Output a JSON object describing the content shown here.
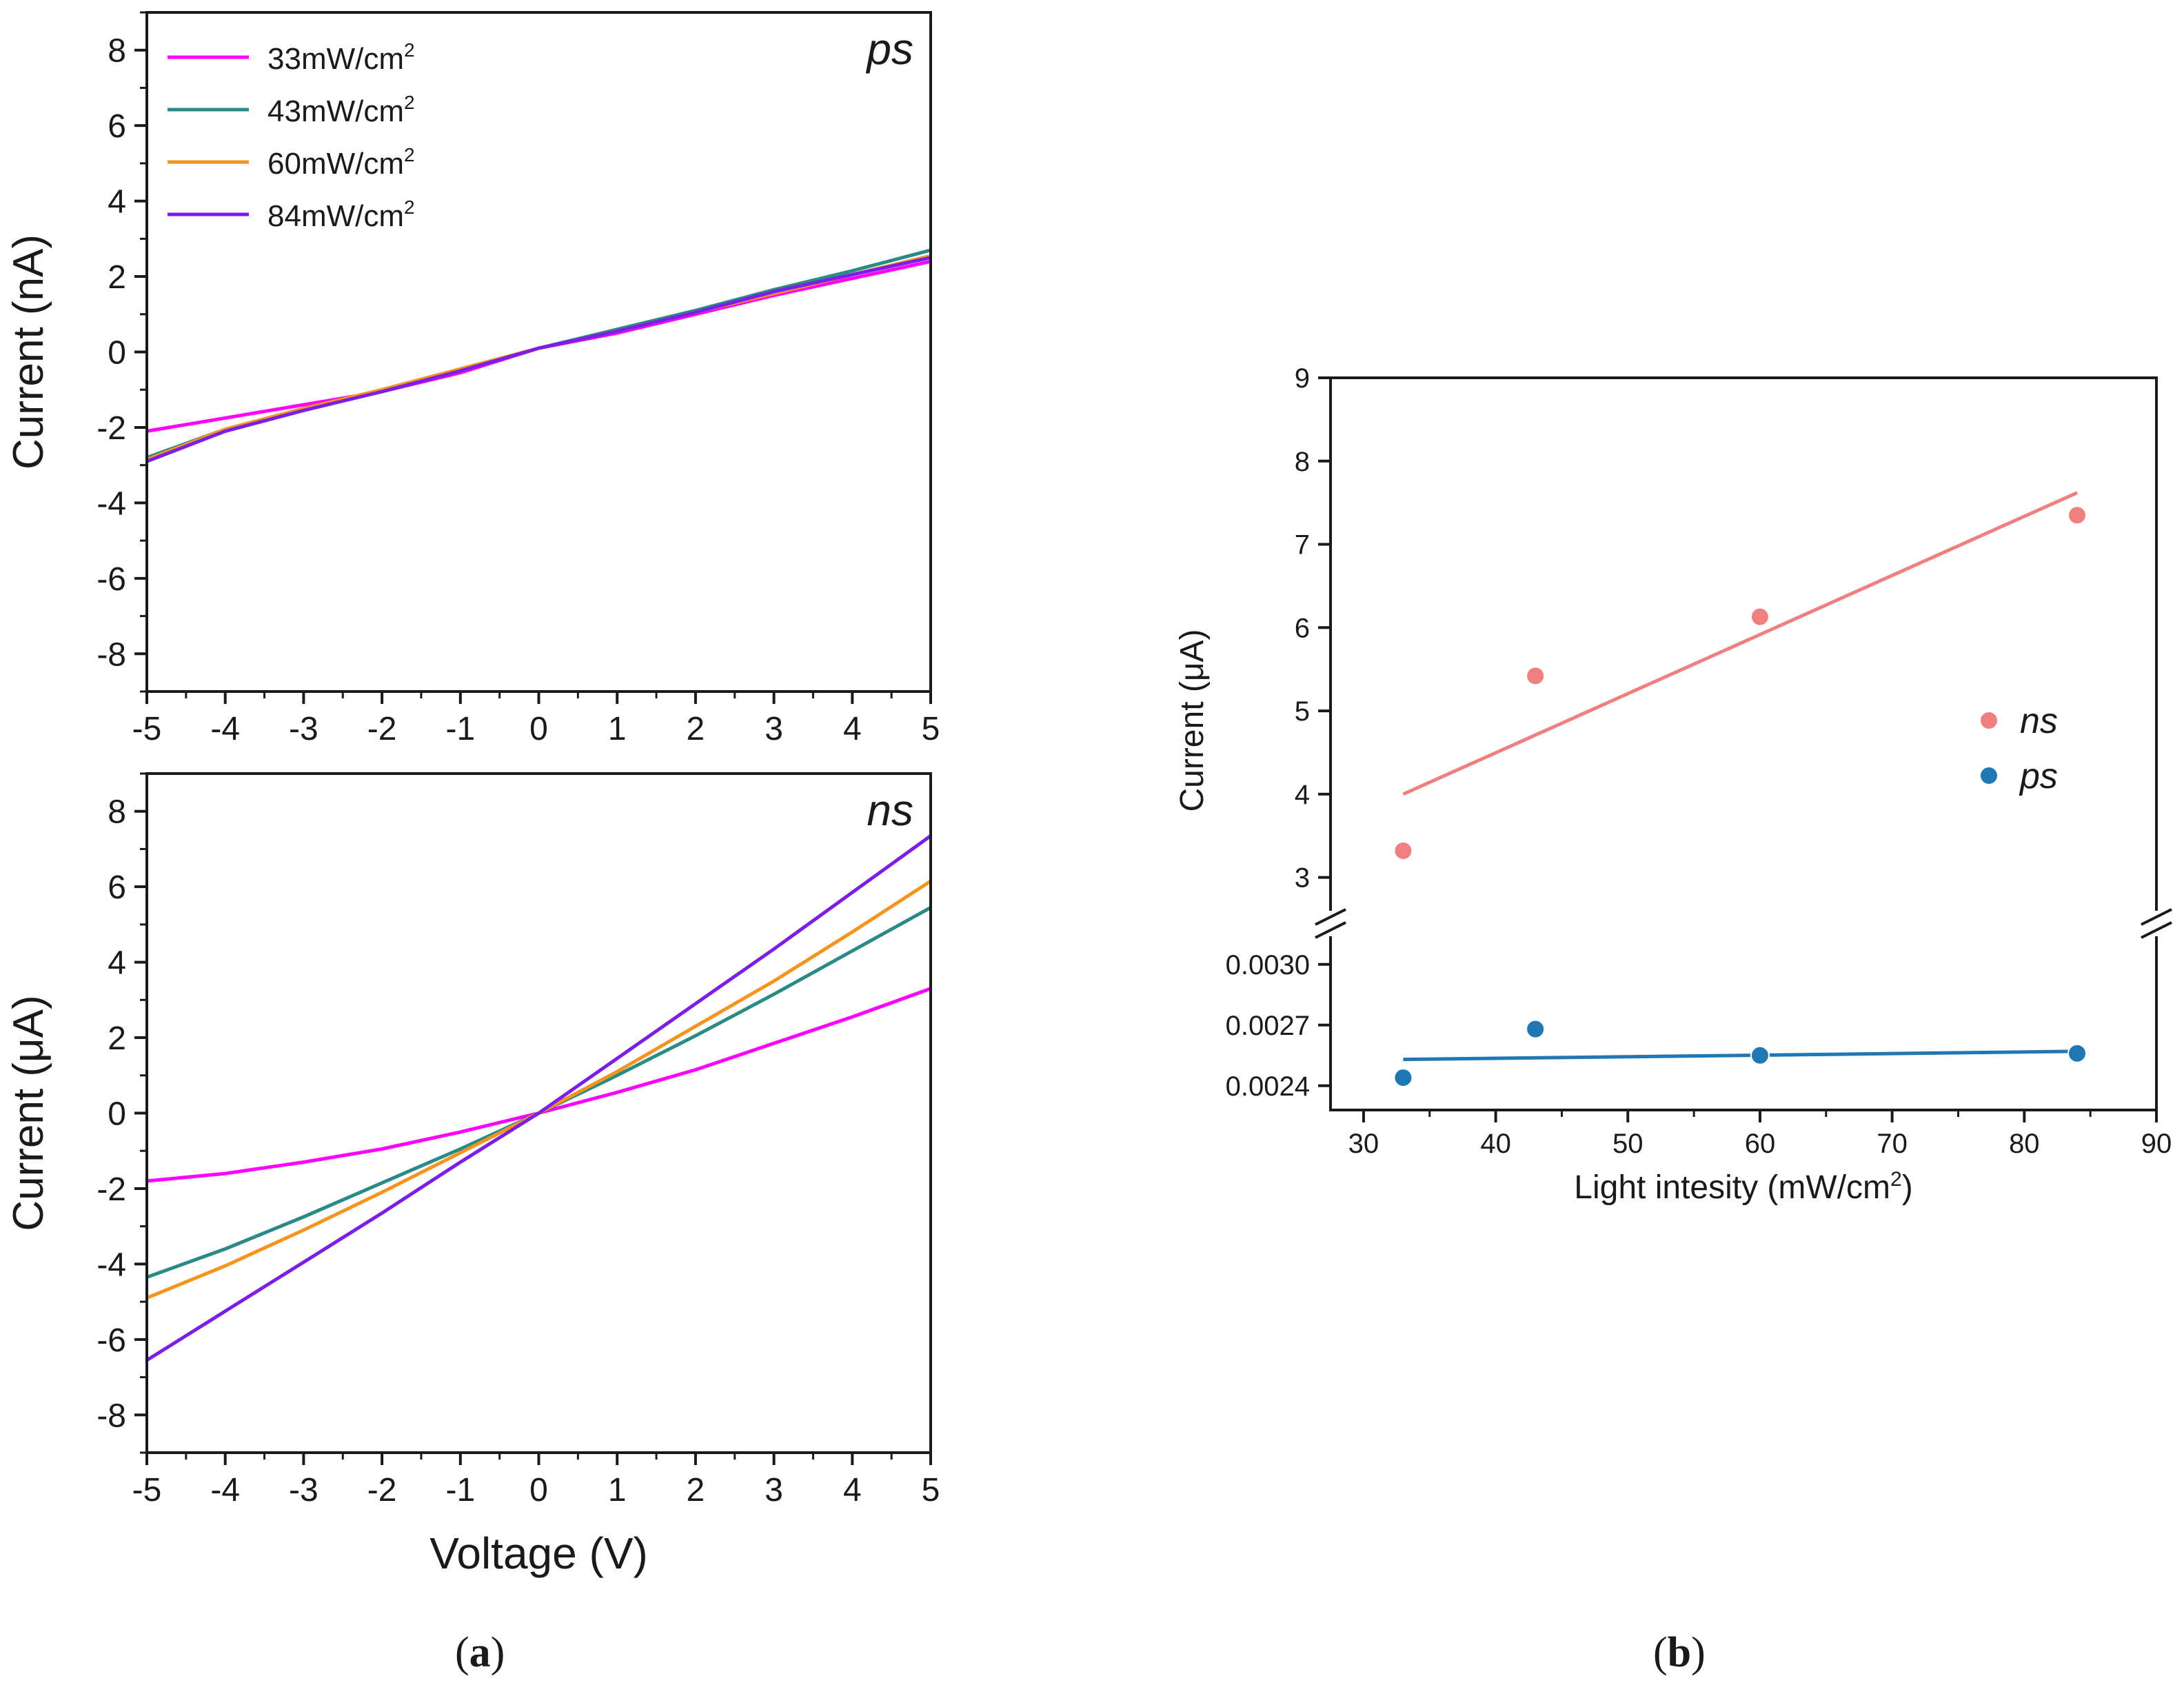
{
  "chart_data": [
    {
      "id": "a-ps",
      "type": "line",
      "panel_label": "ps",
      "ylabel": "Current (nA)",
      "xlabel": "",
      "xlim": [
        -5,
        5
      ],
      "ylim": [
        -9,
        9
      ],
      "x_ticks": [
        -5,
        -4,
        -3,
        -2,
        -1,
        0,
        1,
        2,
        3,
        4,
        5
      ],
      "x_tick_labels": [
        "-5",
        "-4",
        "-3",
        "-2",
        "-1",
        "0",
        "1",
        "2",
        "3",
        "4",
        "5"
      ],
      "y_ticks": [
        -8,
        -6,
        -4,
        -2,
        0,
        2,
        4,
        6,
        8
      ],
      "y_tick_labels": [
        "-8",
        "-6",
        "-4",
        "-2",
        "0",
        "2",
        "4",
        "6",
        "8"
      ],
      "legend": {
        "position": "top-left",
        "entries": [
          {
            "label": "33mW/cm",
            "sup": "2",
            "color": "#ff00ff"
          },
          {
            "label": "43mW/cm",
            "sup": "2",
            "color": "#2a8a85"
          },
          {
            "label": "60mW/cm",
            "sup": "2",
            "color": "#f7941d"
          },
          {
            "label": "84mW/cm",
            "sup": "2",
            "color": "#7b1fe8"
          }
        ]
      },
      "series": [
        {
          "name": "33mW/cm2",
          "color": "#ff00ff",
          "x": [
            -5,
            -4,
            -3,
            -2,
            -1,
            0,
            1,
            2,
            3,
            4,
            5
          ],
          "values": [
            -2.1,
            -1.75,
            -1.4,
            -1.05,
            -0.55,
            0.1,
            0.5,
            1.0,
            1.5,
            1.95,
            2.4
          ]
        },
        {
          "name": "43mW/cm2",
          "color": "#2a8a85",
          "x": [
            -5,
            -4,
            -3,
            -2,
            -1,
            0,
            1,
            2,
            3,
            4,
            5
          ],
          "values": [
            -2.8,
            -2.05,
            -1.5,
            -1.05,
            -0.5,
            0.1,
            0.6,
            1.1,
            1.65,
            2.15,
            2.7
          ]
        },
        {
          "name": "60mW/cm2",
          "color": "#f7941d",
          "x": [
            -5,
            -4,
            -3,
            -2,
            -1,
            0,
            1,
            2,
            3,
            4,
            5
          ],
          "values": [
            -2.85,
            -2.05,
            -1.5,
            -1.0,
            -0.45,
            0.1,
            0.55,
            1.05,
            1.55,
            2.05,
            2.55
          ]
        },
        {
          "name": "84mW/cm2",
          "color": "#7b1fe8",
          "x": [
            -5,
            -4,
            -3,
            -2,
            -1,
            0,
            1,
            2,
            3,
            4,
            5
          ],
          "values": [
            -2.9,
            -2.1,
            -1.55,
            -1.05,
            -0.5,
            0.1,
            0.55,
            1.05,
            1.6,
            2.05,
            2.5
          ]
        }
      ]
    },
    {
      "id": "a-ns",
      "type": "line",
      "panel_label": "ns",
      "ylabel": "Current (μA)",
      "xlabel": "Voltage (V)",
      "xlim": [
        -5,
        5
      ],
      "ylim": [
        -9,
        9
      ],
      "x_ticks": [
        -5,
        -4,
        -3,
        -2,
        -1,
        0,
        1,
        2,
        3,
        4,
        5
      ],
      "x_tick_labels": [
        "-5",
        "-4",
        "-3",
        "-2",
        "-1",
        "0",
        "1",
        "2",
        "3",
        "4",
        "5"
      ],
      "y_ticks": [
        -8,
        -6,
        -4,
        -2,
        0,
        2,
        4,
        6,
        8
      ],
      "y_tick_labels": [
        "-8",
        "-6",
        "-4",
        "-2",
        "0",
        "2",
        "4",
        "6",
        "8"
      ],
      "series": [
        {
          "name": "33mW/cm2",
          "color": "#ff00ff",
          "x": [
            -5,
            -4,
            -3,
            -2,
            -1,
            0,
            1,
            2,
            3,
            4,
            5
          ],
          "values": [
            -1.8,
            -1.6,
            -1.3,
            -0.95,
            -0.5,
            0,
            0.55,
            1.15,
            1.85,
            2.55,
            3.3
          ]
        },
        {
          "name": "43mW/cm2",
          "color": "#2a8a85",
          "x": [
            -5,
            -4,
            -3,
            -2,
            -1,
            0,
            1,
            2,
            3,
            4,
            5
          ],
          "values": [
            -4.35,
            -3.6,
            -2.75,
            -1.85,
            -0.95,
            0,
            1.0,
            2.05,
            3.15,
            4.3,
            5.45
          ]
        },
        {
          "name": "60mW/cm2",
          "color": "#f7941d",
          "x": [
            -5,
            -4,
            -3,
            -2,
            -1,
            0,
            1,
            2,
            3,
            4,
            5
          ],
          "values": [
            -4.9,
            -4.05,
            -3.1,
            -2.1,
            -1.05,
            0,
            1.1,
            2.3,
            3.5,
            4.8,
            6.15
          ]
        },
        {
          "name": "84mW/cm2",
          "color": "#7b1fe8",
          "x": [
            -5,
            -4,
            -3,
            -2,
            -1,
            0,
            1,
            2,
            3,
            4,
            5
          ],
          "values": [
            -6.55,
            -5.25,
            -3.95,
            -2.65,
            -1.3,
            0,
            1.45,
            2.9,
            4.35,
            5.85,
            7.35
          ]
        }
      ]
    },
    {
      "id": "b",
      "type": "scatter",
      "ylabel": "Current (μA)",
      "xlabel": "Light intesity (mW/cm",
      "xlabel_sup": "2",
      "xlabel_end": ")",
      "xlim": [
        27.5,
        90
      ],
      "x_ticks": [
        30,
        40,
        50,
        60,
        70,
        80,
        90
      ],
      "x_tick_labels": [
        "30",
        "40",
        "50",
        "60",
        "70",
        "80",
        "90"
      ],
      "upper_ylim": [
        2.5,
        9
      ],
      "upper_y_ticks": [
        3,
        4,
        5,
        6,
        7,
        8,
        9
      ],
      "upper_y_tick_labels": [
        "3",
        "4",
        "5",
        "6",
        "7",
        "8",
        "9"
      ],
      "lower_ylim": [
        0.00228,
        0.00318
      ],
      "lower_y_ticks": [
        0.0024,
        0.0027,
        0.003
      ],
      "lower_y_tick_labels": [
        "0.0024",
        "0.0027",
        "0.0030"
      ],
      "legend": {
        "position": "right",
        "entries": [
          {
            "label": "ns",
            "color": "#f08080"
          },
          {
            "label": "ps",
            "color": "#1f77b4"
          }
        ]
      },
      "series": [
        {
          "name": "ns",
          "color": "#f08080",
          "x": [
            33,
            43,
            60,
            84
          ],
          "values": [
            3.32,
            5.42,
            6.13,
            7.35
          ],
          "fit": {
            "x": [
              33,
              84
            ],
            "y": [
              4.0,
              7.62
            ]
          }
        },
        {
          "name": "ps",
          "color": "#1f77b4",
          "x": [
            33,
            43,
            60,
            84
          ],
          "values": [
            0.00244,
            0.00268,
            0.00255,
            0.00256
          ],
          "fit": {
            "x": [
              33,
              84
            ],
            "y": [
              0.00253,
              0.00257
            ]
          }
        }
      ]
    }
  ],
  "captions": {
    "a": {
      "open": "(",
      "letter": "a",
      "close": ")"
    },
    "b": {
      "open": "(",
      "letter": "b",
      "close": ")"
    }
  }
}
